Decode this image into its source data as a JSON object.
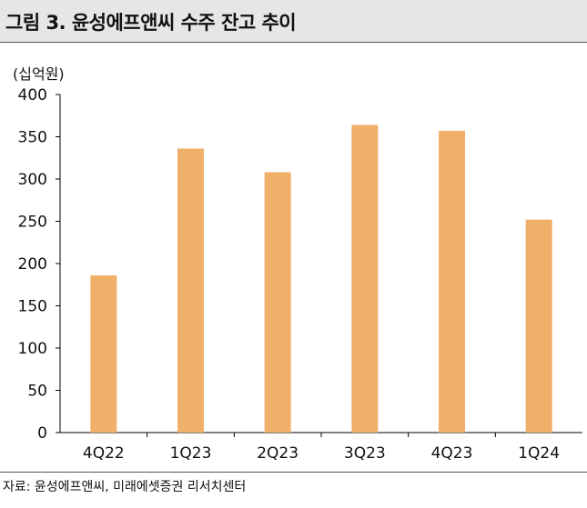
{
  "header": {
    "title": "그림 3. 윤성에프앤씨 수주 잔고 추이"
  },
  "footer": {
    "source": "자료: 윤성에프앤씨, 미래에셋증권 리서치센터"
  },
  "chart_data": {
    "type": "bar",
    "title": "그림 3. 윤성에프앤씨 수주 잔고 추이",
    "ylabel": "(십억원)",
    "xlabel": "",
    "categories": [
      "4Q22",
      "1Q23",
      "2Q23",
      "3Q23",
      "4Q23",
      "1Q24"
    ],
    "values": [
      186,
      336,
      308,
      364,
      357,
      252
    ],
    "ylim": [
      0,
      400
    ],
    "yticks": [
      "0",
      "50",
      "100",
      "150",
      "200",
      "250",
      "300",
      "350",
      "400"
    ],
    "grid": false,
    "legend": "none",
    "colors": {
      "bar": "#F0B06A",
      "axis": "#000000"
    }
  }
}
